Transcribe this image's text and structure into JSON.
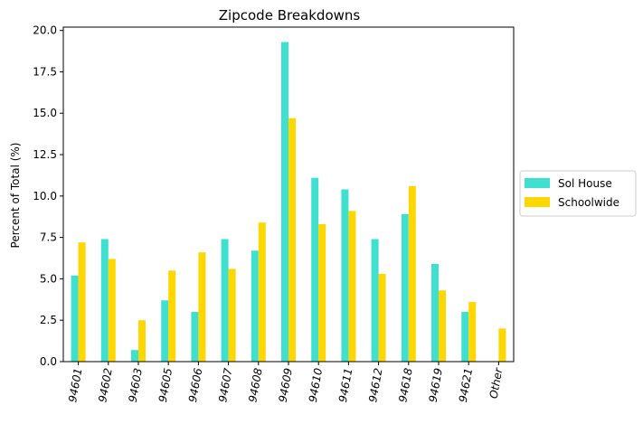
{
  "chart_data": {
    "type": "bar",
    "title": "Zipcode Breakdowns",
    "xlabel": "",
    "ylabel": "Percent of Total (%)",
    "ylim": [
      0,
      20.2
    ],
    "yticks": [
      "0.0",
      "2.5",
      "5.0",
      "7.5",
      "10.0",
      "12.5",
      "15.0",
      "17.5",
      "20.0"
    ],
    "categories": [
      "94601",
      "94602",
      "94603",
      "94605",
      "94606",
      "94607",
      "94608",
      "94609",
      "94610",
      "94611",
      "94612",
      "94618",
      "94619",
      "94621",
      "Other"
    ],
    "series": [
      {
        "name": "Sol House",
        "color": "#40e0d0",
        "values": [
          5.2,
          7.4,
          0.7,
          3.7,
          3.0,
          7.4,
          6.7,
          19.3,
          11.1,
          10.4,
          7.4,
          8.9,
          5.9,
          3.0,
          0.0
        ]
      },
      {
        "name": "Schoolwide",
        "color": "#ffd700",
        "values": [
          7.2,
          6.2,
          2.5,
          5.5,
          6.6,
          5.6,
          8.4,
          14.7,
          8.3,
          9.1,
          5.3,
          10.6,
          4.3,
          3.6,
          2.0
        ]
      }
    ],
    "legend_position": "center-right",
    "grid": false
  }
}
